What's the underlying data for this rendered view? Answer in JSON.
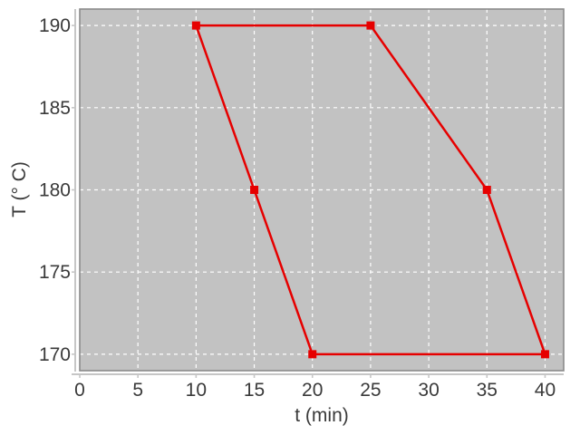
{
  "figure": {
    "background_color": "#ffffff",
    "plot_background_color": "#c2c2c2",
    "plot_border_color": "#8a8a8a",
    "grid_color": "#ffffff",
    "axis_line_color": "#c6c6c6",
    "text_color": "#3a3a3a"
  },
  "chart_data": {
    "type": "line",
    "title": "",
    "xlabel": "t (min)",
    "ylabel": "T (° C)",
    "xlim": [
      0,
      41.6
    ],
    "ylim": [
      169,
      191
    ],
    "x_ticks": [
      0,
      5,
      10,
      15,
      20,
      25,
      30,
      35,
      40
    ],
    "y_ticks": [
      170,
      175,
      180,
      185,
      190
    ],
    "grid": "white dashed, on gray plot background",
    "legend_position": "none",
    "series": [
      {
        "name": "temperature-cycle",
        "color": "#e60000",
        "marker": "filled-square",
        "marker_size": 9,
        "line_width": 2.5,
        "closed": true,
        "points": [
          [
            10,
            190
          ],
          [
            25,
            190
          ],
          [
            35,
            180
          ],
          [
            40,
            170
          ],
          [
            20,
            170
          ],
          [
            15,
            180
          ]
        ]
      }
    ]
  }
}
